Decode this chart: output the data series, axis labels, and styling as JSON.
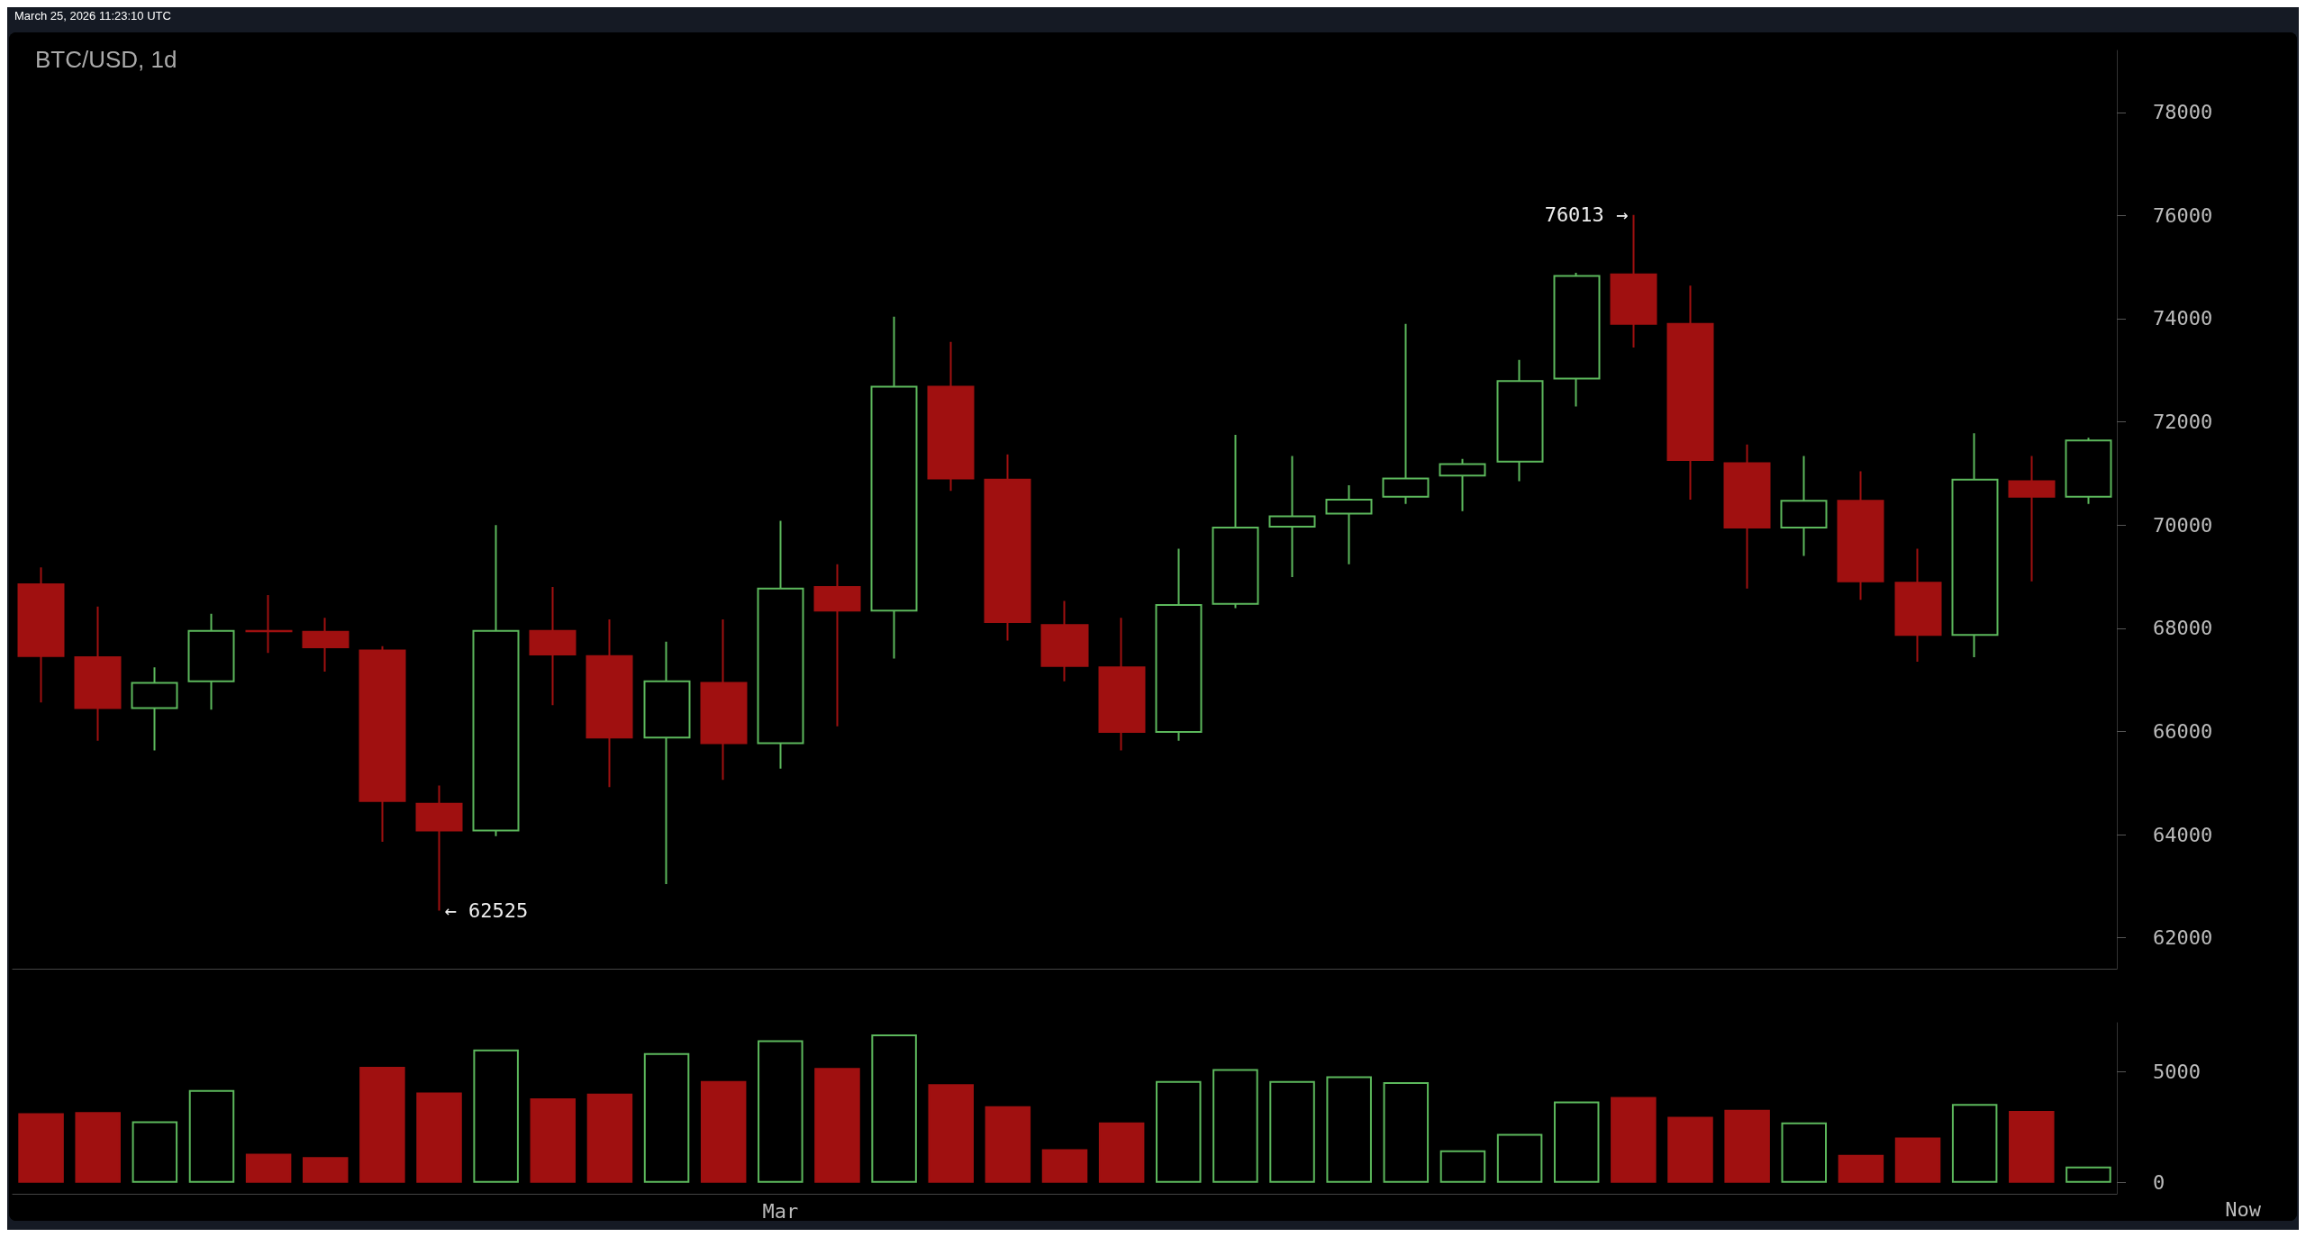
{
  "chart_data": [
    {
      "type": "candlestick",
      "title": "BTC/USD, 1d",
      "annotations": [
        "March 25, 2026 11:23:10 UTC",
        "76013 →",
        "← 62525"
      ],
      "categories": [
        null,
        null,
        null,
        null,
        null,
        null,
        null,
        null,
        null,
        null,
        null,
        null,
        null,
        null,
        null,
        null,
        null,
        null,
        null,
        null,
        null,
        null,
        null,
        null,
        null,
        null,
        null,
        null,
        null,
        null,
        null,
        null,
        null,
        null,
        null,
        null,
        null
      ],
      "ohlc": [
        [
          68850,
          69180,
          66560,
          67460
        ],
        [
          67440,
          68420,
          65820,
          66450
        ],
        [
          66450,
          67240,
          65630,
          66940
        ],
        [
          66970,
          68280,
          66420,
          67950
        ],
        [
          67950,
          68640,
          67520,
          67940
        ],
        [
          67930,
          68200,
          67160,
          67630
        ],
        [
          67570,
          67650,
          63860,
          64650
        ],
        [
          64600,
          64950,
          62525,
          64080
        ],
        [
          64080,
          70000,
          63970,
          67950
        ],
        [
          67950,
          68800,
          66510,
          67490
        ],
        [
          67460,
          68170,
          64920,
          65880
        ],
        [
          65880,
          67740,
          63040,
          66970
        ],
        [
          66940,
          68170,
          65060,
          65770
        ],
        [
          65770,
          70080,
          65280,
          68770
        ],
        [
          68800,
          69240,
          66100,
          68340
        ],
        [
          68340,
          74040,
          67410,
          72680
        ],
        [
          72680,
          73550,
          70660,
          70900
        ],
        [
          70880,
          71370,
          67760,
          68120
        ],
        [
          68060,
          68530,
          66970,
          67270
        ],
        [
          67240,
          68200,
          65630,
          65990
        ],
        [
          65990,
          69540,
          65820,
          68450
        ],
        [
          68470,
          71750,
          68390,
          69950
        ],
        [
          69970,
          71340,
          68990,
          70170
        ],
        [
          70220,
          70770,
          69240,
          70490
        ],
        [
          70550,
          73900,
          70410,
          70900
        ],
        [
          70960,
          71280,
          70270,
          71180
        ],
        [
          71230,
          73200,
          70850,
          72790
        ],
        [
          72840,
          74890,
          72300,
          74830
        ],
        [
          74860,
          76013,
          73440,
          73900
        ],
        [
          73900,
          74640,
          70490,
          71260
        ],
        [
          71200,
          71560,
          68770,
          69950
        ],
        [
          69950,
          71340,
          69400,
          70470
        ],
        [
          70470,
          71040,
          68550,
          68910
        ],
        [
          68880,
          69540,
          67350,
          67870
        ],
        [
          67870,
          71780,
          67440,
          70880
        ],
        [
          70850,
          71340,
          68910,
          70550
        ],
        [
          70550,
          71690,
          70410,
          71640
        ]
      ],
      "colors": [
        "#a01010",
        "#a01010",
        "#5cb85c",
        "#5cb85c",
        "#a01010",
        "#a01010",
        "#a01010",
        "#a01010",
        "#5cb85c",
        "#a01010",
        "#a01010",
        "#5cb85c",
        "#a01010",
        "#5cb85c",
        "#a01010",
        "#5cb85c",
        "#a01010",
        "#a01010",
        "#a01010",
        "#a01010",
        "#5cb85c",
        "#5cb85c",
        "#5cb85c",
        "#5cb85c",
        "#5cb85c",
        "#5cb85c",
        "#5cb85c",
        "#5cb85c",
        "#a01010",
        "#a01010",
        "#a01010",
        "#5cb85c",
        "#a01010",
        "#a01010",
        "#5cb85c",
        "#a01010",
        "#5cb85c"
      ],
      "ylim": [
        61400,
        79200
      ],
      "yticks": [
        62000,
        64000,
        66000,
        68000,
        70000,
        72000,
        74000,
        76000,
        78000
      ],
      "tick_labels": "y"
    },
    {
      "type": "bar",
      "annotations": [
        "Now"
      ],
      "categories": [
        null,
        null,
        null,
        null,
        null,
        null,
        null,
        null,
        null,
        null,
        null,
        null,
        null,
        "Mar",
        null,
        null,
        null,
        null,
        null,
        null,
        null,
        null,
        null,
        null,
        null,
        null,
        null,
        null,
        null,
        null,
        null,
        null,
        null,
        null,
        null,
        null,
        null
      ],
      "values": [
        3130,
        3180,
        2760,
        4170,
        1300,
        1150,
        5210,
        4060,
        5990,
        3800,
        4010,
        5830,
        4580,
        6410,
        5160,
        6670,
        4430,
        3440,
        1510,
        2710,
        4580,
        5110,
        4580,
        4790,
        4530,
        1460,
        2190,
        3650,
        3860,
        2970,
        3280,
        2710,
        1250,
        2030,
        3540,
        3230,
        730
      ],
      "colors": [
        "#a01010",
        "#a01010",
        "#5cb85c",
        "#5cb85c",
        "#a01010",
        "#a01010",
        "#a01010",
        "#a01010",
        "#5cb85c",
        "#a01010",
        "#a01010",
        "#5cb85c",
        "#a01010",
        "#5cb85c",
        "#a01010",
        "#5cb85c",
        "#a01010",
        "#a01010",
        "#a01010",
        "#a01010",
        "#5cb85c",
        "#5cb85c",
        "#5cb85c",
        "#5cb85c",
        "#5cb85c",
        "#5cb85c",
        "#5cb85c",
        "#5cb85c",
        "#a01010",
        "#a01010",
        "#a01010",
        "#5cb85c",
        "#a01010",
        "#a01010",
        "#5cb85c",
        "#a01010",
        "#5cb85c"
      ],
      "ylim": [
        -500,
        7200
      ],
      "yticks": [
        0,
        5000
      ]
    }
  ]
}
